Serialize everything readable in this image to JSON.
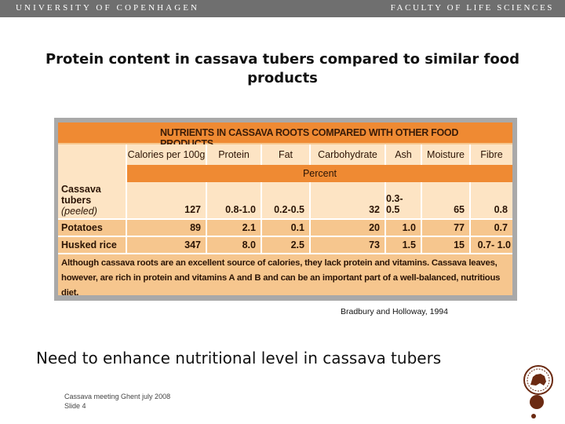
{
  "header": {
    "university": "UNIVERSITY OF COPENHAGEN",
    "faculty": "FACULTY OF LIFE SCIENCES"
  },
  "title": "Protein content in cassava tubers compared to similar food products",
  "table": {
    "heading": "NUTRIENTS IN CASSAVA ROOTS COMPARED WITH OTHER FOOD PRODUCTS",
    "columns": [
      "Calories per 100g",
      "Protein",
      "Fat",
      "Carbohydrate",
      "Ash",
      "Moisture",
      "Fibre"
    ],
    "unit_label": "Percent",
    "rows": [
      {
        "label": "Cassava tubers",
        "sublabel": "(peeled)",
        "values": [
          "127",
          "0.8-1.0",
          "0.2-0.5",
          "32",
          "0.3-0.5",
          "65",
          "0.8"
        ]
      },
      {
        "label": "Potatoes",
        "values": [
          "89",
          "2.1",
          "0.1",
          "20",
          "1.0",
          "77",
          "0.7"
        ]
      },
      {
        "label": "Husked rice",
        "values": [
          "347",
          "8.0",
          "2.5",
          "73",
          "1.5",
          "15",
          "0.7- 1.0"
        ]
      }
    ],
    "note": "Although cassava roots are an excellent source of calories, they lack protein and vitamins. Cassava leaves, however, are rich in protein and vitamins A and B and can be an important part of a well-balanced, nutritious diet."
  },
  "source": "Bradbury and Holloway, 1994",
  "main_statement": "Need to enhance nutritional level in cassava tubers",
  "footer": {
    "line1": "Cassava meeting Ghent july 2008",
    "line2": "Slide 4"
  },
  "colors": {
    "header_bar": "#6f6f6f",
    "table_orange": "#ef8a33",
    "table_peach": "#f6c68e",
    "table_light": "#fde4c4",
    "seal_brown": "#6b2a12"
  }
}
